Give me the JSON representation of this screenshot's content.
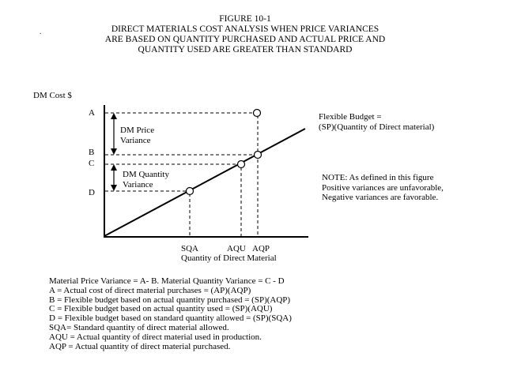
{
  "figure": {
    "title": "FIGURE 10-1",
    "subtitle_lines": [
      "DIRECT MATERIALS  COST ANALYSIS WHEN PRICE VARIANCES",
      "ARE BASED  ON QUANTITY PURCHASED AND ACTUAL PRICE AND",
      "QUANTITY USED ARE GREATER THAN STANDARD"
    ],
    "stray_mark": "."
  },
  "axes": {
    "y_label": "DM Cost  $",
    "x_label": "Quantity of Direct Material",
    "y_points": [
      "A",
      "B",
      "C",
      "D"
    ],
    "x_points": [
      "SQA",
      "AQU",
      "AQP"
    ]
  },
  "annotations": {
    "price_variance": [
      "DM Price",
      "Variance"
    ],
    "quantity_variance": [
      "DM Quantity",
      "Variance"
    ]
  },
  "flexible_budget": {
    "lines": [
      "Flexible Budget =",
      "(SP)(Quantity of Direct material)"
    ]
  },
  "note": {
    "lines": [
      "NOTE: As defined in this figure",
      "Positive variances are unfavorable,",
      "Negative variances are favorable."
    ]
  },
  "legend": {
    "lines": [
      "Material Price  Variance = A- B. Material Quantity Variance = C - D",
      "A = Actual cost of direct material purchases = (AP)(AQP)",
      "B = Flexible budget based on actual quantity purchased = (SP)(AQP)",
      "C = Flexible budget based on actual quantity used = (SP)(AQU)",
      "D = Flexible budget based on standard quantity  allowed = (SP)(SQA)",
      "SQA= Standard quantity of direct material allowed.",
      "AQU = Actual quantity of direct material used in production.",
      "AQP = Actual quantity of direct material purchased."
    ]
  }
}
